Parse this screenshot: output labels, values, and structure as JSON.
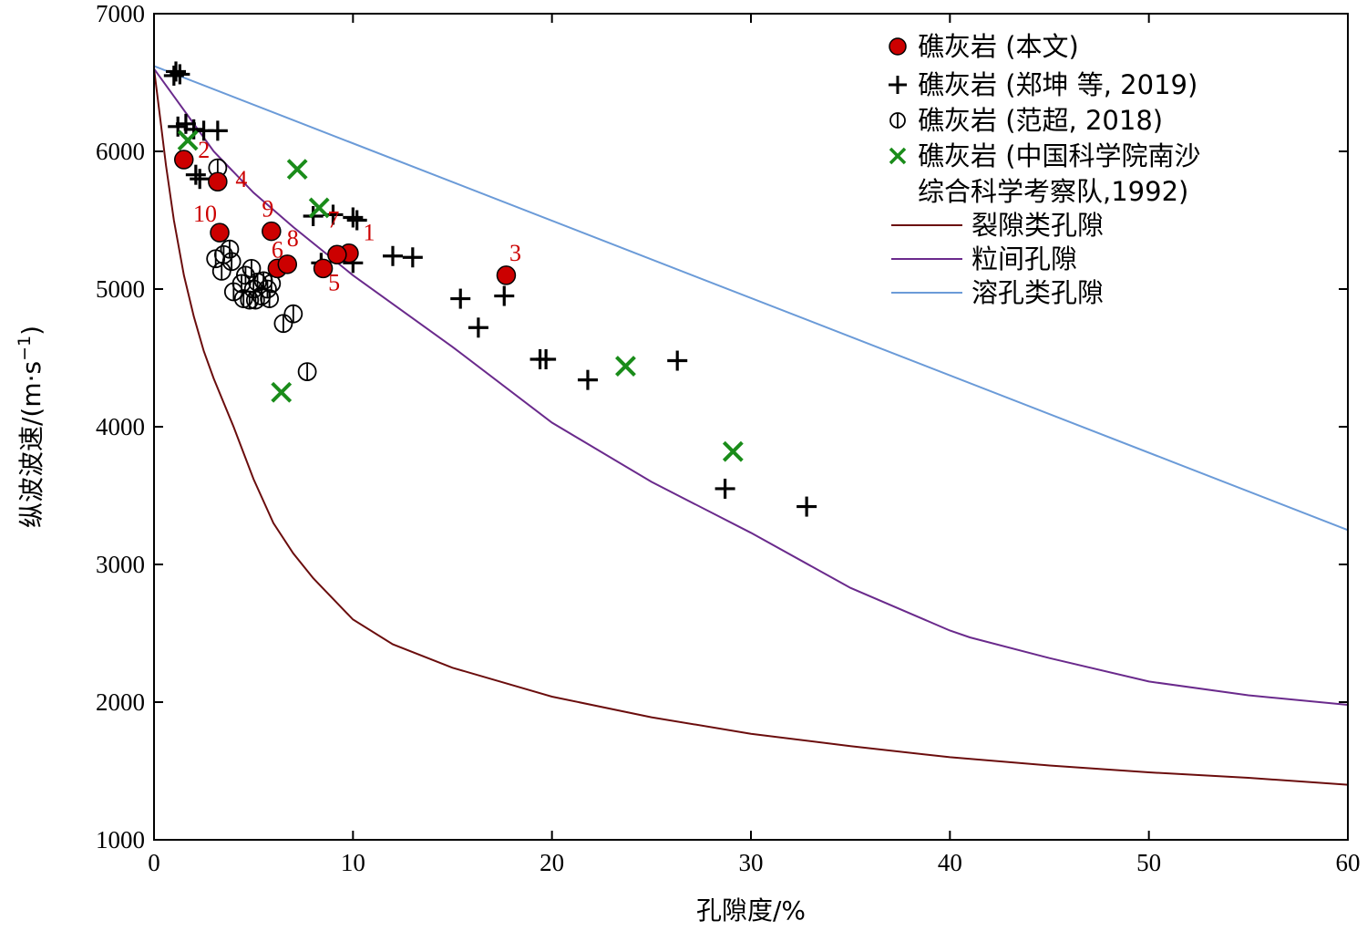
{
  "chart_data": {
    "type": "scatter",
    "xlabel": "孔隙度/%",
    "ylabel": "纵波波速/(m·s",
    "ylabel_sup": "−1",
    "ylabel_close": ")",
    "xlim": [
      0,
      60
    ],
    "ylim": [
      1000,
      7000
    ],
    "xticks": [
      0,
      10,
      20,
      30,
      40,
      50,
      60
    ],
    "yticks": [
      1000,
      2000,
      3000,
      4000,
      5000,
      6000,
      7000
    ],
    "legend_position": "top-right",
    "colors": {
      "this_study": "#cc0000",
      "zheng": "#000000",
      "fan": "#000000",
      "cas": "#1a8c1a",
      "fracture": "#6b0d0d",
      "intergranular": "#6a2a8c",
      "vug": "#6b9bd8"
    },
    "scatter_series": [
      {
        "id": "this_study",
        "name": "礁灰岩 (本文)",
        "marker": "filled-circle",
        "points": [
          {
            "x": 9.8,
            "y": 5260,
            "label": "1"
          },
          {
            "x": 1.5,
            "y": 5940,
            "label": "2"
          },
          {
            "x": 17.7,
            "y": 5100,
            "label": "3"
          },
          {
            "x": 3.2,
            "y": 5780,
            "label": "4"
          },
          {
            "x": 8.5,
            "y": 5150,
            "label": "5"
          },
          {
            "x": 6.2,
            "y": 5150,
            "label": "6"
          },
          {
            "x": 9.2,
            "y": 5250,
            "label": "7"
          },
          {
            "x": 6.7,
            "y": 5180,
            "label": "8"
          },
          {
            "x": 5.9,
            "y": 5420,
            "label": "9"
          },
          {
            "x": 3.3,
            "y": 5410,
            "label": "10"
          }
        ]
      },
      {
        "id": "zheng",
        "name": "礁灰岩 (郑坤 等, 2019)",
        "marker": "plus",
        "points": [
          {
            "x": 1.1,
            "y": 6580
          },
          {
            "x": 1.3,
            "y": 6560
          },
          {
            "x": 1.0,
            "y": 6550
          },
          {
            "x": 1.2,
            "y": 6180
          },
          {
            "x": 1.6,
            "y": 6200
          },
          {
            "x": 2.0,
            "y": 6160
          },
          {
            "x": 2.5,
            "y": 6150
          },
          {
            "x": 3.2,
            "y": 6150
          },
          {
            "x": 2.1,
            "y": 5830
          },
          {
            "x": 2.3,
            "y": 5800
          },
          {
            "x": 8.0,
            "y": 5530
          },
          {
            "x": 9.0,
            "y": 5540
          },
          {
            "x": 10.0,
            "y": 5520
          },
          {
            "x": 10.2,
            "y": 5500
          },
          {
            "x": 8.4,
            "y": 5190
          },
          {
            "x": 10.0,
            "y": 5190
          },
          {
            "x": 12.0,
            "y": 5240
          },
          {
            "x": 13.0,
            "y": 5230
          },
          {
            "x": 15.4,
            "y": 4930
          },
          {
            "x": 17.6,
            "y": 4950
          },
          {
            "x": 16.3,
            "y": 4720
          },
          {
            "x": 19.4,
            "y": 4490
          },
          {
            "x": 19.7,
            "y": 4490
          },
          {
            "x": 21.8,
            "y": 4340
          },
          {
            "x": 26.3,
            "y": 4480
          },
          {
            "x": 28.7,
            "y": 3550
          },
          {
            "x": 32.8,
            "y": 3420
          }
        ]
      },
      {
        "id": "fan",
        "name": "礁灰岩 (范超, 2018)",
        "marker": "open-circle",
        "points": [
          {
            "x": 3.2,
            "y": 5880
          },
          {
            "x": 3.1,
            "y": 5220
          },
          {
            "x": 3.5,
            "y": 5250
          },
          {
            "x": 3.8,
            "y": 5290
          },
          {
            "x": 3.4,
            "y": 5130
          },
          {
            "x": 3.9,
            "y": 5200
          },
          {
            "x": 4.0,
            "y": 4980
          },
          {
            "x": 4.4,
            "y": 5040
          },
          {
            "x": 4.6,
            "y": 5100
          },
          {
            "x": 4.9,
            "y": 5150
          },
          {
            "x": 5.2,
            "y": 5050
          },
          {
            "x": 4.5,
            "y": 4930
          },
          {
            "x": 4.8,
            "y": 4920
          },
          {
            "x": 5.0,
            "y": 5000
          },
          {
            "x": 5.4,
            "y": 4950
          },
          {
            "x": 5.7,
            "y": 5000
          },
          {
            "x": 5.5,
            "y": 5060
          },
          {
            "x": 5.9,
            "y": 5040
          },
          {
            "x": 5.1,
            "y": 4920
          },
          {
            "x": 5.8,
            "y": 4930
          },
          {
            "x": 6.5,
            "y": 4750
          },
          {
            "x": 7.0,
            "y": 4820
          },
          {
            "x": 7.7,
            "y": 4400
          }
        ]
      },
      {
        "id": "cas",
        "name_line1": "礁灰岩 (中国科学院南沙",
        "name_line2": "综合科学考察队,1992)",
        "marker": "x",
        "points": [
          {
            "x": 1.7,
            "y": 6080
          },
          {
            "x": 7.2,
            "y": 5870
          },
          {
            "x": 8.3,
            "y": 5590
          },
          {
            "x": 6.4,
            "y": 4250
          },
          {
            "x": 23.7,
            "y": 4440
          },
          {
            "x": 29.1,
            "y": 3820
          }
        ]
      }
    ],
    "curves": [
      {
        "id": "fracture",
        "name": "裂隙类孔隙",
        "x": [
          0,
          0.3,
          0.6,
          1,
          1.5,
          2,
          2.5,
          3,
          4,
          5,
          6,
          7,
          8,
          10,
          12,
          15,
          20,
          25,
          30,
          35,
          40,
          45,
          50,
          55,
          60
        ],
        "y": [
          6600,
          6250,
          5900,
          5500,
          5100,
          4800,
          4550,
          4350,
          4000,
          3620,
          3300,
          3080,
          2900,
          2600,
          2420,
          2250,
          2040,
          1890,
          1770,
          1680,
          1600,
          1540,
          1490,
          1450,
          1400
        ]
      },
      {
        "id": "intergranular",
        "name": "粒间孔隙",
        "x": [
          0,
          1,
          2,
          3,
          5,
          7,
          10,
          15,
          20,
          25,
          30,
          35,
          40,
          41,
          45,
          50,
          55,
          60
        ],
        "y": [
          6600,
          6400,
          6200,
          6000,
          5700,
          5450,
          5100,
          4580,
          4030,
          3600,
          3230,
          2830,
          2520,
          2470,
          2320,
          2150,
          2050,
          1980
        ]
      },
      {
        "id": "vug",
        "name": "溶孔类孔隙",
        "x": [
          0,
          60
        ],
        "y": [
          6620,
          3250
        ]
      }
    ]
  }
}
